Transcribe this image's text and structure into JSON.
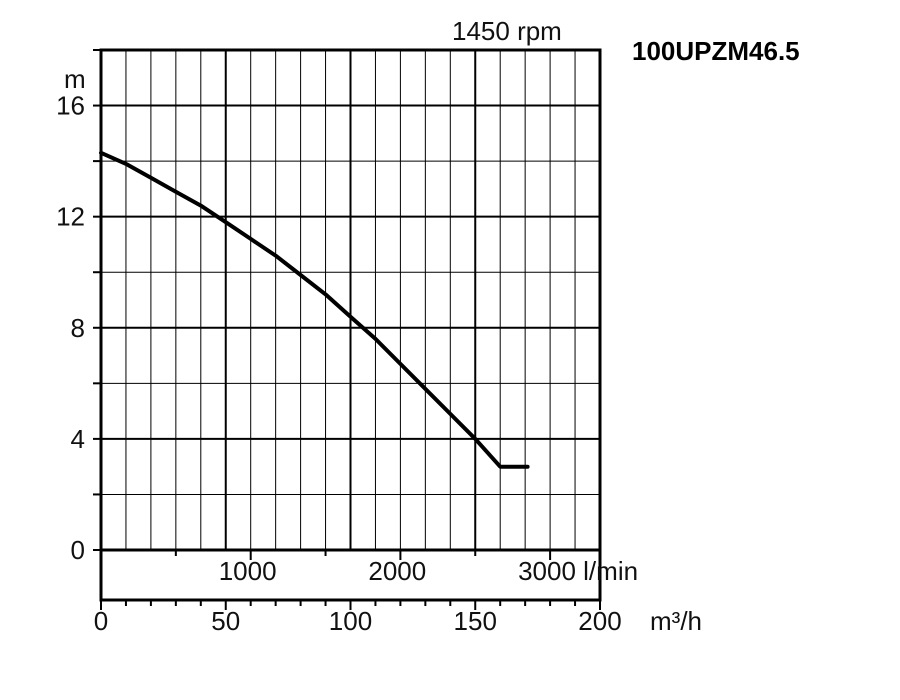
{
  "chart_data": {
    "type": "line",
    "title": "100UPZM46.5",
    "subtitle": "1450 rpm",
    "ylabel": "m",
    "ylim": [
      0,
      18
    ],
    "yticks": [
      0,
      4,
      8,
      12,
      16
    ],
    "xlim": [
      0,
      200
    ],
    "xunit": "m³/h",
    "xticks": [
      0,
      50,
      100,
      150,
      200
    ],
    "x2unit": "l/min",
    "x2ticks": [
      1000,
      2000,
      3000
    ],
    "x2_labels": [
      "1000",
      "2000",
      "3000 l/min"
    ],
    "grid": true,
    "series": [
      {
        "x": [
          0,
          10,
          20,
          30,
          40,
          50,
          60,
          70,
          80,
          90,
          100,
          110,
          120,
          130,
          140,
          150,
          160,
          171
        ],
        "y": [
          14.3,
          13.9,
          13.4,
          12.9,
          12.4,
          11.8,
          11.2,
          10.6,
          9.9,
          9.2,
          8.4,
          7.6,
          6.7,
          5.8,
          4.9,
          4.0,
          3.0,
          3.0
        ]
      }
    ]
  }
}
